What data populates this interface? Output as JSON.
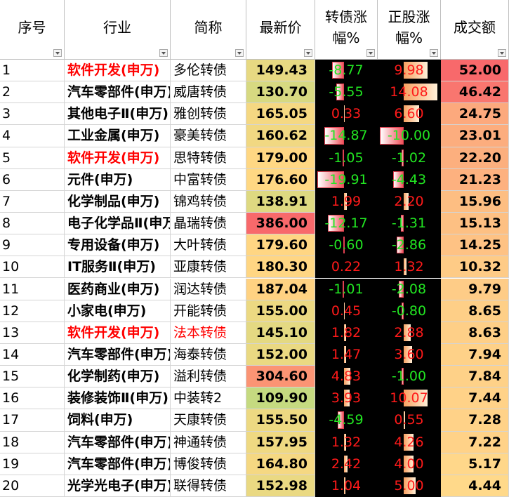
{
  "table": {
    "headers": [
      "序号",
      "行业",
      "简称",
      "最新价",
      "转债涨幅%",
      "正股涨幅%",
      "成交额"
    ],
    "rows": [
      [
        "1",
        "软件开发(申万)",
        "多伦转债",
        "149.43",
        "-8.77",
        "9.98",
        "52.00"
      ],
      [
        "2",
        "汽车零部件(申万)",
        "威唐转债",
        "130.70",
        "-5.55",
        "14.08",
        "46.42"
      ],
      [
        "3",
        "其他电子Ⅱ(申万)",
        "雅创转债",
        "165.05",
        "0.33",
        "6.60",
        "24.75"
      ],
      [
        "4",
        "工业金属(申万)",
        "豪美转债",
        "160.62",
        "-14.87",
        "-10.00",
        "23.01"
      ],
      [
        "5",
        "软件开发(申万)",
        "思特转债",
        "179.00",
        "-1.05",
        "-1.02",
        "22.20"
      ],
      [
        "6",
        "元件(申万)",
        "中富转债",
        "176.60",
        "-19.91",
        "-4.43",
        "21.23"
      ],
      [
        "7",
        "化学制品(申万)",
        "锦鸡转债",
        "138.91",
        "1.99",
        "2.20",
        "15.96"
      ],
      [
        "8",
        "电子化学品Ⅱ(申万)",
        "晶瑞转债",
        "386.00",
        "-12.17",
        "-1.31",
        "15.13"
      ],
      [
        "9",
        "专用设备(申万)",
        "大叶转债",
        "179.60",
        "-0.60",
        "-2.86",
        "14.25"
      ],
      [
        "10",
        "IT服务Ⅱ(申万)",
        "亚康转债",
        "180.30",
        "0.22",
        "1.32",
        "10.32"
      ],
      [
        "11",
        "医药商业(申万)",
        "润达转债",
        "187.04",
        "-1.01",
        "-2.08",
        "9.79"
      ],
      [
        "12",
        "小家电(申万)",
        "开能转债",
        "155.00",
        "0.45",
        "-0.80",
        "8.65"
      ],
      [
        "13",
        "软件开发(申万)",
        "法本转债",
        "145.10",
        "1.82",
        "2.88",
        "8.63"
      ],
      [
        "14",
        "汽车零部件(申万)",
        "海泰转债",
        "152.00",
        "1.47",
        "3.60",
        "7.94"
      ],
      [
        "15",
        "化学制药(申万)",
        "溢利转债",
        "304.60",
        "4.83",
        "-1.00",
        "7.84"
      ],
      [
        "16",
        "装修装饰Ⅱ(申万)",
        "中装转2",
        "109.90",
        "3.93",
        "10.07",
        "7.44"
      ],
      [
        "17",
        "饲料(申万)",
        "天康转债",
        "155.50",
        "-4.59",
        "0.55",
        "7.28"
      ],
      [
        "18",
        "汽车零部件(申万)",
        "神通转债",
        "157.95",
        "1.32",
        "4.26",
        "7.22"
      ],
      [
        "19",
        "汽车零部件(申万)",
        "博俊转债",
        "164.80",
        "2.42",
        "4.00",
        "5.17"
      ],
      [
        "20",
        "光学光电子(申万)",
        "联得转债",
        "152.98",
        "1.04",
        "5.00",
        "4.44"
      ]
    ]
  }
}
